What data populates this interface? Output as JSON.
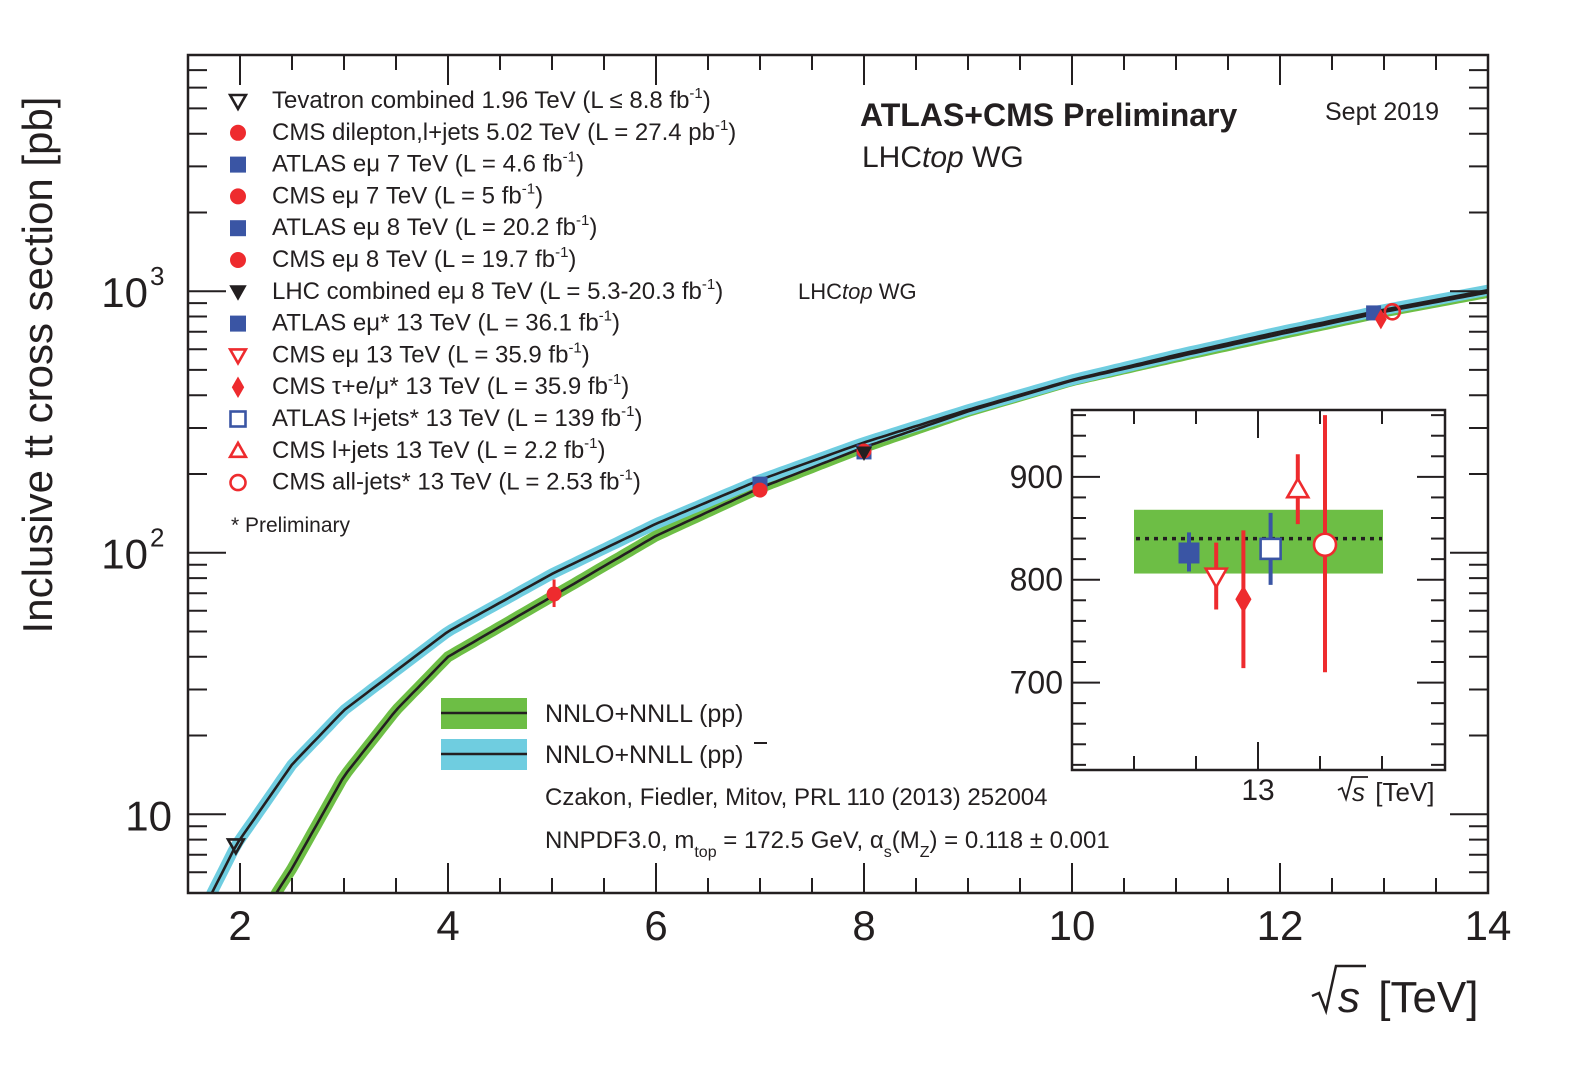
{
  "chart_data": [
    {
      "type": "scatter",
      "xlabel_main": "s",
      "xlabel_unit": " [TeV]",
      "ylabel": "Inclusive tt cross section [pb]",
      "xlim": [
        1.5,
        14
      ],
      "ylim": [
        5,
        8000
      ],
      "y_scale": "log",
      "x_ticks": [
        "2",
        "4",
        "6",
        "8",
        "10",
        "12",
        "14"
      ],
      "x_tick_values": [
        2,
        4,
        6,
        8,
        10,
        12,
        14
      ],
      "y_ticks": [
        "10",
        "10",
        "10"
      ],
      "y_tick_exponents": [
        "",
        "2",
        "3"
      ],
      "y_tick_values": [
        10,
        100,
        1000
      ],
      "header": {
        "title": "ATLAS+CMS Preliminary",
        "date": "Sept 2019",
        "group_prefix": "LHC",
        "group_italic": "top",
        "group_suffix": " WG"
      },
      "legend": [
        {
          "marker": "triangle-down-open",
          "color": "#231f20",
          "pre": "Tevatron combined 1.96 TeV (L ≤ 8.8 fb",
          "sup": "-1",
          "post": ")"
        },
        {
          "marker": "circle-filled",
          "color": "#ee2b2e",
          "pre": "CMS dilepton,l+jets 5.02 TeV (L = 27.4 pb",
          "sup": "-1",
          "post": ")"
        },
        {
          "marker": "square-filled",
          "color": "#3a55a4",
          "pre": "ATLAS eμ 7 TeV (L = 4.6 fb",
          "sup": "-1",
          "post": ")"
        },
        {
          "marker": "circle-filled",
          "color": "#ee2b2e",
          "pre": "CMS eμ 7 TeV (L = 5 fb",
          "sup": "-1",
          "post": ")"
        },
        {
          "marker": "square-filled",
          "color": "#3a55a4",
          "pre": "ATLAS eμ 8 TeV (L = 20.2 fb",
          "sup": "-1",
          "post": ")"
        },
        {
          "marker": "circle-filled",
          "color": "#ee2b2e",
          "pre": "CMS eμ 8 TeV (L = 19.7 fb",
          "sup": "-1",
          "post": ")"
        },
        {
          "marker": "triangle-down-filled",
          "color": "#231f20",
          "pre": "LHC combined eμ 8 TeV (L = 5.3-20.3 fb",
          "sup": "-1",
          "post": ")",
          "extra_prefix": "LHC",
          "extra_italic": "top",
          "extra_suffix": " WG"
        },
        {
          "marker": "square-filled",
          "color": "#3a55a4",
          "pre": "ATLAS eμ* 13 TeV (L = 36.1 fb",
          "sup": "-1",
          "post": ")"
        },
        {
          "marker": "triangle-down-open",
          "color": "#ee2b2e",
          "pre": "CMS eμ 13 TeV (L = 35.9 fb",
          "sup": "-1",
          "post": ")"
        },
        {
          "marker": "diamond-filled",
          "color": "#ee2b2e",
          "pre": "CMS τ+e/μ* 13 TeV (L = 35.9 fb",
          "sup": "-1",
          "post": ")"
        },
        {
          "marker": "square-open",
          "color": "#3a55a4",
          "pre": "ATLAS l+jets* 13 TeV (L = 139 fb",
          "sup": "-1",
          "post": ")"
        },
        {
          "marker": "triangle-up-open",
          "color": "#ee2b2e",
          "pre": "CMS l+jets 13 TeV (L = 2.2 fb",
          "sup": "-1",
          "post": ")"
        },
        {
          "marker": "circle-open",
          "color": "#ee2b2e",
          "pre": "CMS all-jets* 13 TeV (L = 2.53 fb",
          "sup": "-1",
          "post": ")"
        }
      ],
      "preliminary_note": "* Preliminary",
      "theory_legend": [
        {
          "band_color": "#6dbe45",
          "label": "NNLO+NNLL (pp)"
        },
        {
          "band_color": "#6fcde0",
          "label": "NNLO+NNLL (pp)"
        }
      ],
      "theory_citation": "Czakon, Fiedler, Mitov, PRL 110 (2013) 252004",
      "theory_params": {
        "p1": "NNPDF3.0, m",
        "p1_sub": "top",
        "p2": " = 172.5 GeV, α",
        "p2_sub": "s",
        "p3": "(M",
        "p3_sub": "Z",
        "p4": ") = 0.118 ± 0.001"
      },
      "curves": [
        {
          "name": "pp",
          "color": "#231f20",
          "band_color": "#6dbe45",
          "x": [
            2.35,
            2.5,
            3,
            3.5,
            4,
            5,
            6,
            7,
            8,
            9,
            10,
            11,
            12,
            13,
            14
          ],
          "y": [
            5,
            6.2,
            14,
            25,
            40,
            68,
            116,
            177,
            253,
            347,
            455,
            560,
            685,
            834,
            990
          ]
        },
        {
          "name": "ppbar",
          "color": "#231f20",
          "band_color": "#6fcde0",
          "x": [
            1.73,
            1.96,
            2.5,
            3,
            4,
            5,
            6,
            7,
            8,
            9,
            10,
            11,
            12,
            13,
            14
          ],
          "y": [
            5,
            7.6,
            15.5,
            25,
            50,
            83,
            129,
            190,
            264,
            352,
            458,
            570,
            700,
            850,
            1010
          ]
        }
      ],
      "points": [
        {
          "marker": "triangle-down-open",
          "color": "#231f20",
          "x": 1.96,
          "y": 7.6
        },
        {
          "marker": "circle-filled",
          "color": "#ee2b2e",
          "x": 5.02,
          "y": 69.5,
          "yerr": [
            62,
            79
          ]
        },
        {
          "marker": "square-filled",
          "color": "#3a55a4",
          "x": 7.0,
          "y": 182.9
        },
        {
          "marker": "circle-filled",
          "color": "#ee2b2e",
          "x": 7.0,
          "y": 173.6
        },
        {
          "marker": "square-filled",
          "color": "#3a55a4",
          "x": 8.0,
          "y": 242.9
        },
        {
          "marker": "circle-filled",
          "color": "#ee2b2e",
          "x": 8.0,
          "y": 244.9
        },
        {
          "marker": "triangle-down-filled",
          "color": "#231f20",
          "x": 8.0,
          "y": 241.5
        },
        {
          "marker": "square-filled",
          "color": "#3a55a4",
          "x": 12.9,
          "y": 826
        },
        {
          "marker": "diamond-filled",
          "color": "#ee2b2e",
          "x": 12.97,
          "y": 781
        },
        {
          "marker": "circle-open",
          "color": "#ee2b2e",
          "x": 13.08,
          "y": 834
        }
      ]
    },
    {
      "type": "scatter",
      "inset": true,
      "xlabel_main": "s",
      "xlabel_unit": " [TeV]",
      "x_ticks": [
        "13"
      ],
      "y_ticks": [
        "700",
        "800",
        "900"
      ],
      "y_tick_values": [
        700,
        800,
        900
      ],
      "ylim": [
        615,
        965
      ],
      "theory": {
        "center": 840,
        "band": [
          806,
          868
        ],
        "color": "#6dbe45"
      },
      "points": [
        {
          "marker": "square-filled",
          "color": "#3a55a4",
          "slot": 0,
          "y": 826,
          "yerr": [
            808,
            846
          ]
        },
        {
          "marker": "triangle-down-open",
          "color": "#ee2b2e",
          "slot": 1,
          "y": 803,
          "yerr": [
            771,
            836
          ]
        },
        {
          "marker": "diamond-filled",
          "color": "#ee2b2e",
          "slot": 2,
          "y": 781,
          "yerr": [
            714,
            848
          ]
        },
        {
          "marker": "square-open",
          "color": "#3a55a4",
          "slot": 3,
          "y": 830,
          "yerr": [
            795,
            865
          ]
        },
        {
          "marker": "triangle-up-open",
          "color": "#ee2b2e",
          "slot": 4,
          "y": 888,
          "yerr": [
            854,
            922
          ]
        },
        {
          "marker": "circle-open",
          "color": "#ee2b2e",
          "slot": 5,
          "y": 834,
          "yerr": [
            710,
            960
          ]
        }
      ]
    }
  ]
}
